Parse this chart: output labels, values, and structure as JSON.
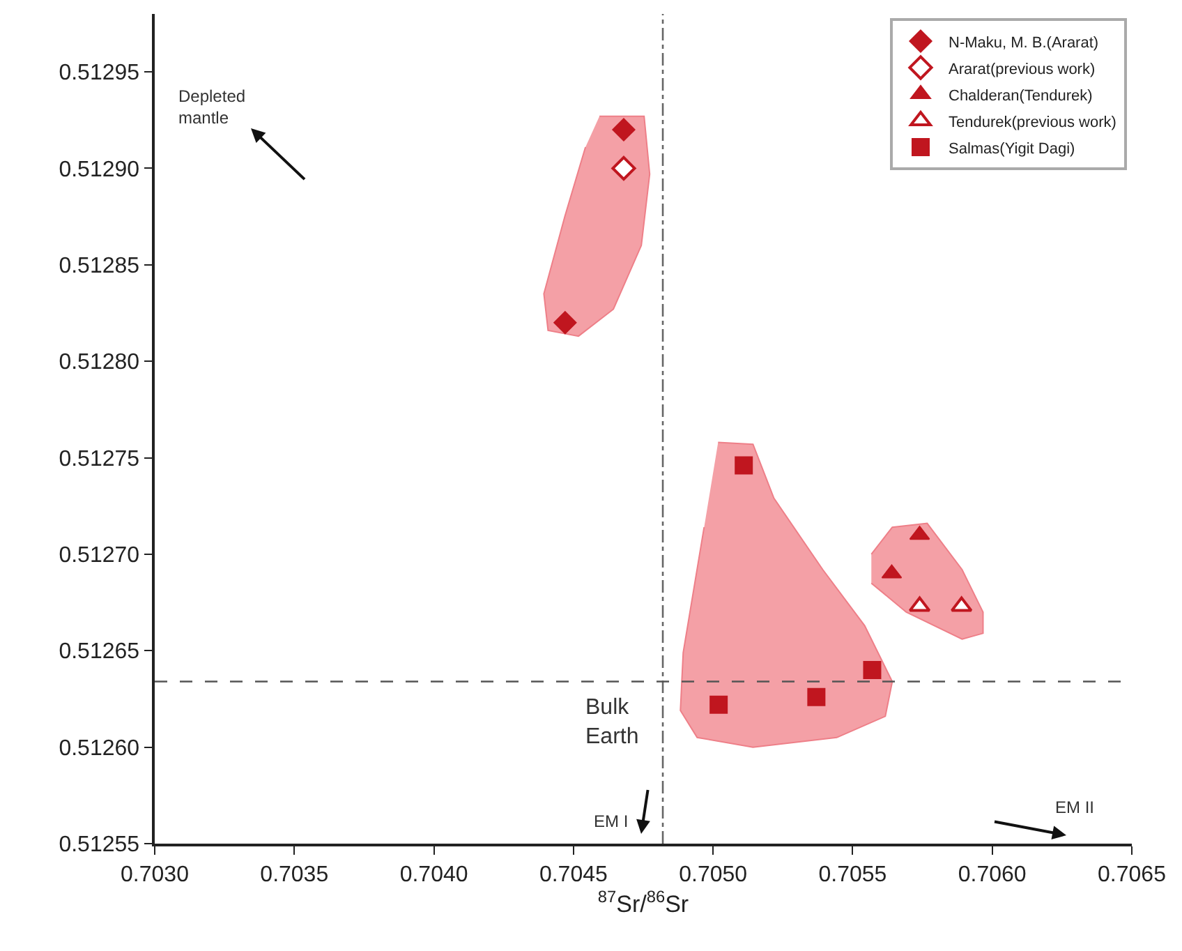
{
  "chart_data": {
    "type": "scatter",
    "xlabel": "$^{87}$Sr/$^{86}$Sr",
    "xlim": [
      0.703,
      0.7065
    ],
    "xticks": [
      {
        "value": 0.703,
        "label": "0.7030"
      },
      0.7035,
      {
        "value": 0.704,
        "label": "0.7040"
      },
      0.7045,
      {
        "value": 0.705,
        "label": "0.7050"
      },
      0.7055,
      {
        "value": 0.706,
        "label": "0.7060"
      },
      0.7065
    ],
    "ylim": [
      0.51255,
      0.51298
    ],
    "yticks": [
      0.51255,
      {
        "value": 0.5126,
        "label": "0.51260"
      },
      0.51265,
      {
        "value": 0.5127,
        "label": "0.51270"
      },
      0.51275,
      {
        "value": 0.5128,
        "label": "0.51280"
      },
      0.51285,
      {
        "value": 0.5129,
        "label": "0.51290"
      },
      0.51295
    ],
    "legend": "top right",
    "series": [
      {
        "type": "area",
        "color": "#f4a0a6",
        "x": [
          0.704593,
          0.704753,
          0.704773,
          0.704743,
          0.704643,
          0.704518,
          0.704409,
          0.704394,
          0.704469,
          0.704543
        ],
        "values": [
          0.512927,
          0.512927,
          0.512897,
          0.51286,
          0.512827,
          0.512813,
          0.512816,
          0.512835,
          0.512875,
          0.512911
        ]
      },
      {
        "type": "area",
        "color": "#f4a0a6",
        "x": [
          0.705018,
          0.705143,
          0.705218,
          0.705393,
          0.705543,
          0.705642,
          0.705617,
          0.705443,
          0.705143,
          0.704943,
          0.704883,
          0.704893,
          0.704968
        ],
        "values": [
          0.512758,
          0.512757,
          0.512729,
          0.512692,
          0.512663,
          0.512634,
          0.512616,
          0.512605,
          0.5126,
          0.512605,
          0.512619,
          0.512649,
          0.512714
        ]
      },
      {
        "type": "area",
        "color": "#f4a0a6",
        "x": [
          0.705567,
          0.705642,
          0.705767,
          0.705892,
          0.705967,
          0.705967,
          0.705892,
          0.705692,
          0.705567
        ],
        "values": [
          0.5127,
          0.512714,
          0.512716,
          0.512692,
          0.51267,
          0.512659,
          0.512656,
          0.51267,
          0.512685
        ]
      },
      {
        "name": "N-Maku, M. B.(Ararat)",
        "color": "#c0161f",
        "marker": "diamond",
        "x": [
          0.70468,
          0.70447
        ],
        "values": [
          0.51292,
          0.51282
        ]
      },
      {
        "name": "Ararat(previous work)",
        "color": "#c0161f",
        "marker": "diamond",
        "colors": [
          "#ffffff"
        ],
        "x": [
          0.70468
        ],
        "values": [
          0.5129
        ]
      },
      {
        "name": "Chalderan(Tendurek)",
        "color": "#c0161f",
        "marker": "triangle",
        "x": [
          0.70574,
          0.70564
        ],
        "values": [
          0.51271,
          0.51269
        ]
      },
      {
        "name": "Tendurek(previous work)",
        "color": "#c0161f",
        "marker": "triangle",
        "colors": [
          "#ffffff",
          "#ffffff"
        ],
        "x": [
          0.70574,
          0.70589
        ],
        "values": [
          0.512673,
          0.512673
        ]
      },
      {
        "name": "Salmas(Yigit Dagi)",
        "color": "#c0161f",
        "marker": "square",
        "x": [
          0.70511,
          0.70557,
          0.70537,
          0.70502
        ],
        "values": [
          0.512746,
          0.51264,
          0.512626,
          0.512622
        ]
      }
    ],
    "ref_lines": [
      {
        "axis": "x",
        "value": 0.70482,
        "color": "#666666",
        "line_style": "dashdot"
      },
      {
        "axis": "y",
        "value": 0.512634,
        "color": "#555555",
        "line_style": "dashed"
      }
    ],
    "annotations": [
      "Depleted\nmantle",
      "Bulk\nEarth",
      "EM I",
      "EM II"
    ]
  }
}
